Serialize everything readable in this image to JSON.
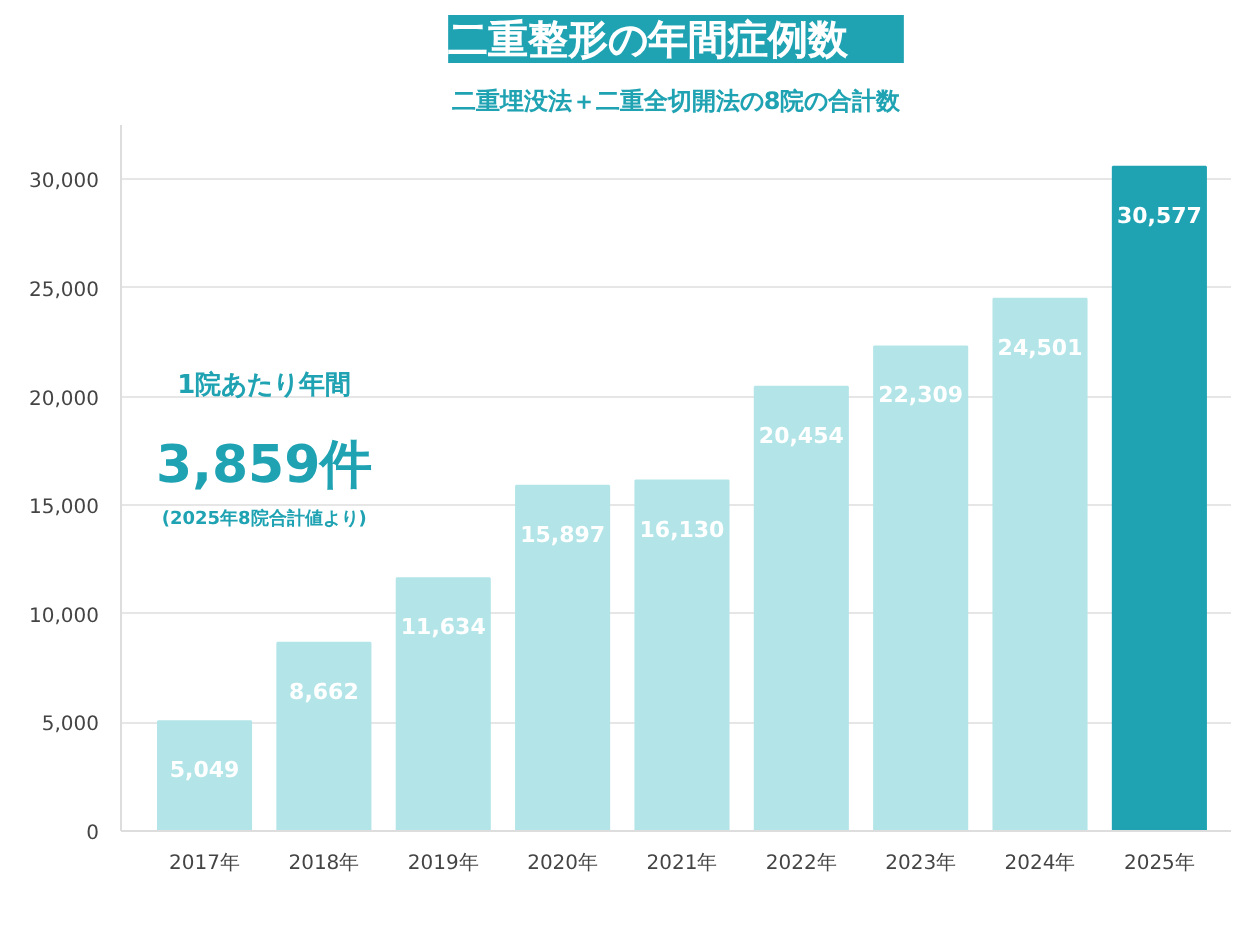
{
  "chart_data": {
    "type": "bar",
    "title": "二重整形の年間症例数",
    "subtitle": "二重埋没法＋二重全切開法の8院の合計数",
    "categories": [
      "2017年",
      "2018年",
      "2019年",
      "2020年",
      "2021年",
      "2022年",
      "2023年",
      "2024年",
      "2025年"
    ],
    "values": [
      5049,
      8662,
      11634,
      15897,
      16130,
      20454,
      22309,
      24501,
      30577
    ],
    "colors": [
      "#b3e5e8",
      "#b3e5e8",
      "#b3e5e8",
      "#b3e5e8",
      "#b3e5e8",
      "#b3e5e8",
      "#b3e5e8",
      "#b3e5e8",
      "#1fa3b3"
    ],
    "value_labels": [
      "5,049",
      "8,662",
      "11,634",
      "15,897",
      "16,130",
      "20,454",
      "22,309",
      "24,501",
      "30,577"
    ],
    "ylim": [
      0,
      32500
    ],
    "yticks": [
      {
        "value": 0,
        "label": "0"
      },
      {
        "value": 5000,
        "label": "5,000"
      },
      {
        "value": 10000,
        "label": "10,000"
      },
      {
        "value": 15000,
        "label": "15,000"
      },
      {
        "value": 20000,
        "label": "20,000"
      },
      {
        "value": 25000,
        "label": "25,000"
      },
      {
        "value": 30000,
        "label": "30,000"
      }
    ],
    "grid": "y",
    "annotations": [
      "1院あたり年間",
      "3,859件",
      "(2025年8院合計値より)"
    ]
  }
}
